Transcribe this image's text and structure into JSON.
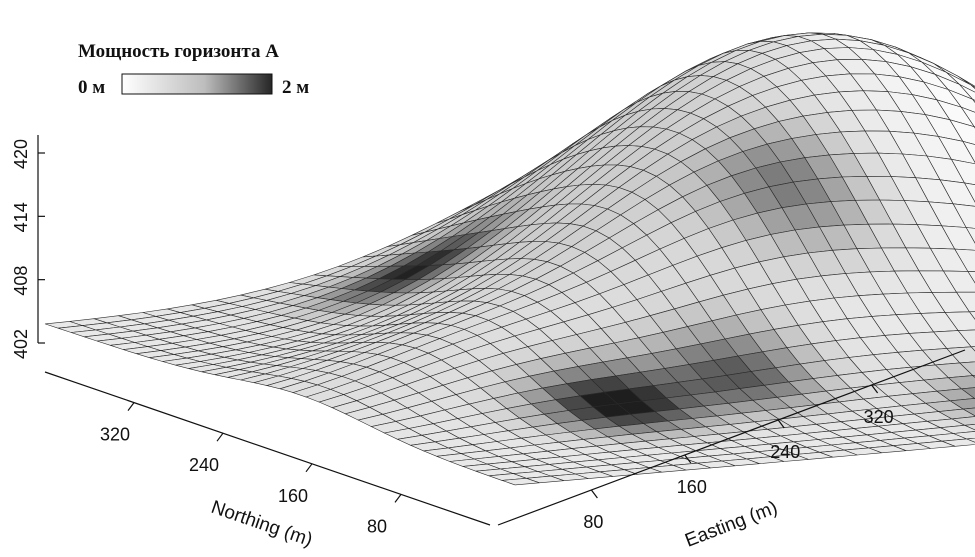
{
  "chart_data": {
    "type": "surface3d",
    "legend": {
      "title": "Мощность горизонта А",
      "min_label": "0 м",
      "max_label": "2 м",
      "colors": [
        "#ffffff",
        "#bdbdbd",
        "#262626"
      ]
    },
    "axes": {
      "z": {
        "ticks": [
          "402",
          "408",
          "414",
          "420"
        ],
        "range": [
          402,
          420
        ]
      },
      "northing": {
        "label": "Northing (m)",
        "ticks": [
          "320",
          "240",
          "160",
          "80"
        ],
        "range": [
          0,
          400
        ]
      },
      "easting": {
        "label": "Easting (m)",
        "ticks": [
          "80",
          "160",
          "240",
          "320"
        ],
        "range": [
          0,
          400
        ]
      }
    },
    "surface": {
      "base_elevation": 402,
      "peaks": [
        {
          "easting": 300,
          "northing": 300,
          "height": 18,
          "spread": 95
        },
        {
          "easting": 190,
          "northing": 210,
          "height": 5,
          "spread": 60
        },
        {
          "easting": 80,
          "northing": 180,
          "height": 3,
          "spread": 55
        }
      ],
      "dark_patches": [
        {
          "easting": 100,
          "northing": 100,
          "thickness": 2.0
        },
        {
          "easting": 130,
          "northing": 330,
          "thickness": 1.8
        },
        {
          "easting": 160,
          "northing": 110,
          "thickness": 1.3
        },
        {
          "easting": 230,
          "northing": 200,
          "thickness": 1.0
        },
        {
          "easting": 260,
          "northing": 60,
          "thickness": 1.0
        }
      ]
    }
  }
}
